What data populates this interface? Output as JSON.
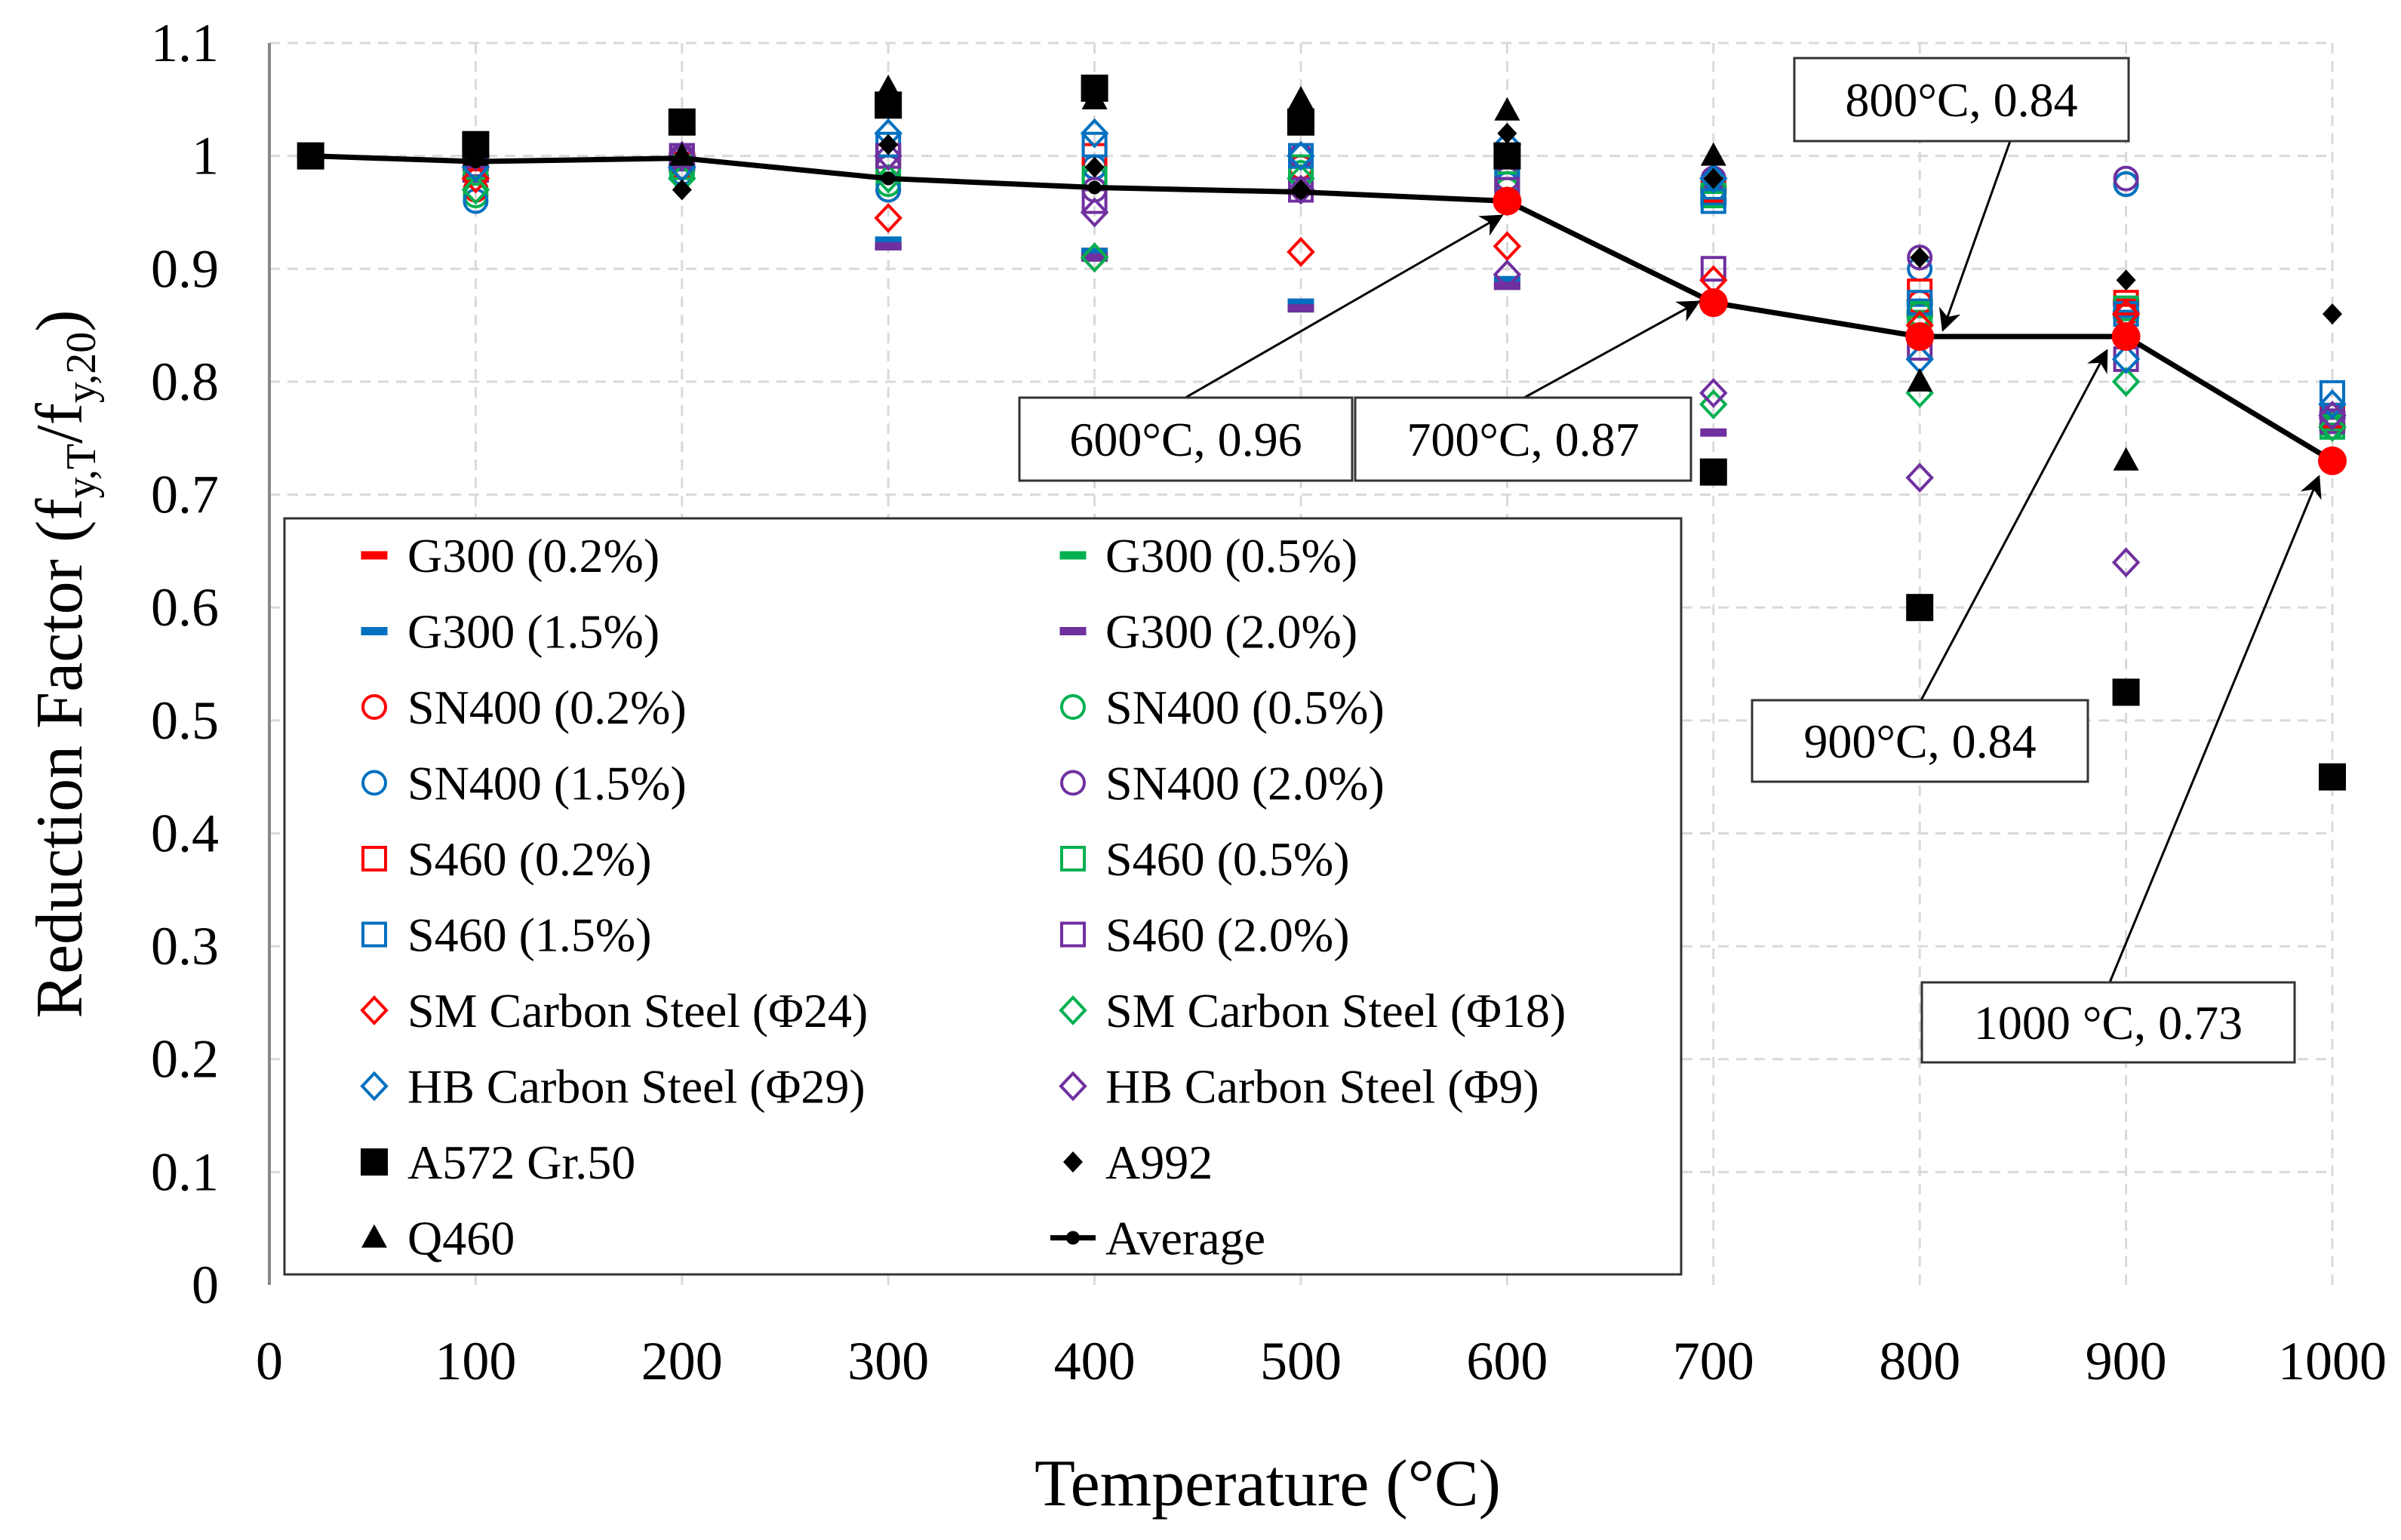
{
  "chart_data": {
    "type": "scatter",
    "title": "",
    "xlabel": "Temperature (°C)",
    "ylabel": "Reduction Factor (fy,T/fy,20)",
    "ylabel_parts": {
      "main": "Reduction Factor (f",
      "sub1": "y,T",
      "mid": "/f",
      "sub2": "y,20",
      "end": ")"
    },
    "xlim": [
      0,
      1000
    ],
    "ylim": [
      0,
      1.1
    ],
    "xticks": [
      "0",
      "100",
      "200",
      "300",
      "400",
      "500",
      "600",
      "700",
      "800",
      "900",
      "1000"
    ],
    "yticks": [
      "0",
      "0.1",
      "0.2",
      "0.3",
      "0.4",
      "0.5",
      "0.6",
      "0.7",
      "0.8",
      "0.9",
      "1",
      "1.1"
    ],
    "grid": true,
    "legend_position": "bottom-left",
    "x": [
      20,
      100,
      200,
      300,
      400,
      500,
      600,
      700,
      800,
      900,
      1000
    ],
    "colors": {
      "red": "#FF0000",
      "green": "#00B050",
      "blue": "#0070C0",
      "purple": "#7030A0",
      "black": "#000000"
    },
    "series": [
      {
        "name": "G300 (0.2%)",
        "marker": "dash",
        "color": "#FF0000",
        "values": [
          1.0,
          0.99,
          1.0,
          0.92,
          0.915,
          0.87,
          0.885,
          0.97,
          0.86,
          0.87,
          0.76
        ]
      },
      {
        "name": "G300 (0.5%)",
        "marker": "dash",
        "color": "#00B050",
        "values": [
          1.0,
          0.98,
          0.99,
          0.92,
          0.91,
          0.865,
          0.885,
          0.97,
          0.86,
          0.86,
          0.76
        ]
      },
      {
        "name": "G300 (1.5%)",
        "marker": "dash",
        "color": "#0070C0",
        "values": [
          1.0,
          0.98,
          0.99,
          0.925,
          0.915,
          0.87,
          0.89,
          0.96,
          0.87,
          0.86,
          0.77
        ]
      },
      {
        "name": "G300 (2.0%)",
        "marker": "dash",
        "color": "#7030A0",
        "values": [
          1.0,
          0.98,
          0.99,
          0.92,
          0.91,
          0.865,
          0.885,
          0.755,
          0.84,
          0.84,
          0.77
        ]
      },
      {
        "name": "SN400 (0.2%)",
        "marker": "circle",
        "color": "#FF0000",
        "values": [
          1.0,
          0.97,
          0.99,
          0.97,
          0.99,
          0.99,
          0.97,
          0.97,
          0.87,
          0.86,
          0.76
        ]
      },
      {
        "name": "SN400 (0.5%)",
        "marker": "circle",
        "color": "#00B050",
        "values": [
          1.0,
          0.965,
          0.985,
          0.975,
          0.98,
          0.985,
          0.97,
          0.97,
          0.86,
          0.975,
          0.76
        ]
      },
      {
        "name": "SN400 (1.5%)",
        "marker": "circle",
        "color": "#0070C0",
        "values": [
          1.0,
          0.96,
          0.985,
          0.97,
          0.99,
          1.0,
          0.975,
          0.97,
          0.9,
          0.975,
          0.77
        ]
      },
      {
        "name": "SN400 (2.0%)",
        "marker": "circle",
        "color": "#7030A0",
        "values": [
          1.0,
          0.99,
          1.0,
          0.99,
          0.97,
          1.0,
          0.98,
          0.98,
          0.91,
          0.98,
          0.77
        ]
      },
      {
        "name": "S460 (0.2%)",
        "marker": "square",
        "color": "#FF0000",
        "values": [
          1.0,
          1.0,
          1.0,
          1.0,
          1.0,
          1.0,
          0.98,
          0.97,
          0.88,
          0.87,
          0.77
        ]
      },
      {
        "name": "S460 (0.5%)",
        "marker": "square",
        "color": "#00B050",
        "values": [
          1.0,
          0.99,
          0.99,
          0.99,
          0.98,
          0.99,
          0.975,
          0.965,
          0.86,
          0.865,
          0.76
        ]
      },
      {
        "name": "S460 (1.5%)",
        "marker": "square",
        "color": "#0070C0",
        "values": [
          1.0,
          1.0,
          1.0,
          1.01,
          1.01,
          1.0,
          0.98,
          0.96,
          0.87,
          0.86,
          0.79
        ]
      },
      {
        "name": "S460 (2.0%)",
        "marker": "square",
        "color": "#7030A0",
        "values": [
          1.0,
          1.0,
          1.0,
          1.0,
          0.96,
          0.97,
          0.97,
          0.9,
          0.83,
          0.82,
          0.765
        ]
      },
      {
        "name": "SM Carbon Steel (Φ24)",
        "marker": "diamond",
        "color": "#FF0000",
        "values": [
          null,
          0.98,
          0.99,
          0.945,
          0.91,
          0.915,
          0.92,
          0.89,
          0.85,
          0.86,
          0.76
        ]
      },
      {
        "name": "SM Carbon Steel (Φ18)",
        "marker": "diamond",
        "color": "#00B050",
        "values": [
          null,
          0.97,
          0.98,
          0.98,
          0.91,
          0.98,
          0.96,
          0.78,
          0.79,
          0.8,
          0.76
        ]
      },
      {
        "name": "HB Carbon Steel (Φ29)",
        "marker": "diamond",
        "color": "#0070C0",
        "values": [
          null,
          0.99,
          0.99,
          1.02,
          1.02,
          1.0,
          1.01,
          0.98,
          0.82,
          0.82,
          0.78
        ]
      },
      {
        "name": "HB Carbon Steel (Φ9)",
        "marker": "diamond",
        "color": "#7030A0",
        "values": [
          null,
          1.0,
          1.0,
          1.0,
          0.95,
          0.97,
          0.895,
          0.79,
          0.715,
          0.64,
          0.77
        ]
      },
      {
        "name": "A572 Gr.50",
        "marker": "filled-square",
        "color": "#000000",
        "values": [
          1.0,
          1.01,
          1.03,
          1.045,
          1.06,
          1.03,
          1.0,
          0.72,
          0.6,
          0.525,
          0.45
        ]
      },
      {
        "name": "A992",
        "marker": "filled-diamond",
        "color": "#000000",
        "values": [
          null,
          1.0,
          0.97,
          1.01,
          0.99,
          0.97,
          1.02,
          0.98,
          0.91,
          0.89,
          0.86
        ]
      },
      {
        "name": "Q460",
        "marker": "triangle",
        "color": "#000000",
        "values": [
          null,
          1.0,
          1.0,
          1.06,
          1.05,
          1.05,
          1.04,
          1.0,
          0.8,
          0.73,
          null
        ]
      },
      {
        "name": "Average",
        "marker": "line",
        "color": "#000000",
        "values": [
          1.0,
          0.995,
          0.998,
          0.98,
          0.972,
          0.968,
          0.96,
          0.87,
          0.84,
          0.84,
          0.73
        ]
      }
    ],
    "annotations": [
      {
        "text": "600°C, 0.96",
        "x": 600,
        "y": 0.96
      },
      {
        "text": "700°C, 0.87",
        "x": 700,
        "y": 0.87
      },
      {
        "text": "800°C, 0.84",
        "x": 800,
        "y": 0.84
      },
      {
        "text": "900°C, 0.84",
        "x": 900,
        "y": 0.84
      },
      {
        "text": "1000 °C, 0.73",
        "x": 1000,
        "y": 0.73
      }
    ],
    "highlight_color": "#FF0000"
  }
}
